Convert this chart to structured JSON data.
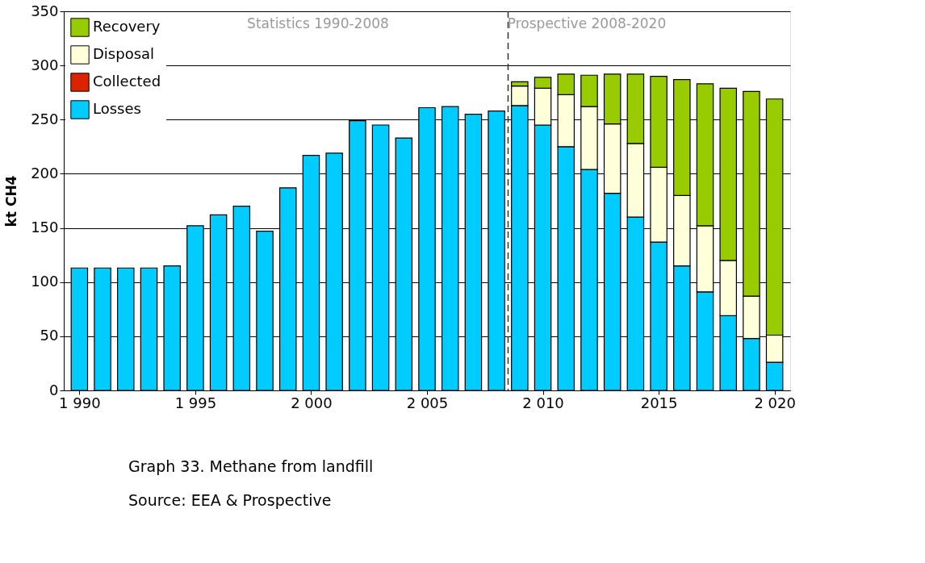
{
  "chart_data": {
    "type": "bar",
    "stacked": true,
    "ylabel": "kt CH4",
    "x": [
      1990,
      1991,
      1992,
      1993,
      1994,
      1995,
      1996,
      1997,
      1998,
      1999,
      2000,
      2001,
      2002,
      2003,
      2004,
      2005,
      2006,
      2007,
      2008,
      2009,
      2010,
      2011,
      2012,
      2013,
      2014,
      2015,
      2016,
      2017,
      2018,
      2019,
      2020
    ],
    "series": [
      {
        "name": "Losses",
        "color": "#00ccff",
        "values": [
          113,
          113,
          113,
          113,
          115,
          152,
          162,
          170,
          147,
          187,
          217,
          219,
          249,
          245,
          233,
          261,
          262,
          255,
          258,
          263,
          245,
          225,
          204,
          182,
          160,
          137,
          115,
          91,
          69,
          48,
          26
        ]
      },
      {
        "name": "Collected",
        "color": "#dd2200",
        "values": [
          null,
          null,
          null,
          null,
          null,
          null,
          null,
          null,
          null,
          null,
          null,
          null,
          null,
          null,
          null,
          null,
          null,
          null,
          null,
          null,
          null,
          null,
          null,
          null,
          null,
          null,
          null,
          null,
          null,
          null,
          null
        ]
      },
      {
        "name": "Disposal",
        "color": "#ffffd9",
        "values": [
          null,
          null,
          null,
          null,
          null,
          null,
          null,
          null,
          null,
          null,
          null,
          null,
          null,
          null,
          null,
          null,
          null,
          null,
          null,
          18,
          34,
          48,
          58,
          64,
          68,
          69,
          65,
          61,
          51,
          39,
          25
        ]
      },
      {
        "name": "Recovery",
        "color": "#99cc00",
        "values": [
          null,
          null,
          null,
          null,
          null,
          null,
          null,
          null,
          null,
          null,
          null,
          null,
          null,
          null,
          null,
          null,
          null,
          null,
          null,
          4,
          10,
          19,
          29,
          46,
          64,
          84,
          107,
          131,
          159,
          189,
          218
        ]
      }
    ],
    "xlim": [
      1989.5,
      2020.5
    ],
    "xticks": [
      {
        "value": 1990,
        "label": "1 990"
      },
      {
        "value": 1995,
        "label": "1 995"
      },
      {
        "value": 2000,
        "label": "2 000"
      },
      {
        "value": 2005,
        "label": "2 005"
      },
      {
        "value": 2010,
        "label": "2 010"
      },
      2015,
      {
        "value": 2020,
        "label": "2 020"
      }
    ],
    "ylim": [
      0,
      350
    ],
    "yticks": [
      0,
      50,
      100,
      150,
      200,
      250,
      300,
      350
    ],
    "grid": "y",
    "legend": "top left",
    "ref_lines": [
      {
        "axis": "x",
        "value": 2008.5,
        "line_style": "dashed",
        "color": "#333333"
      }
    ],
    "annotations": [
      "Statistics 1990-2008",
      "Prospective 2008-2020",
      "Graph 33. Methane from landfill",
      "Source: EEA & Prospective"
    ]
  }
}
